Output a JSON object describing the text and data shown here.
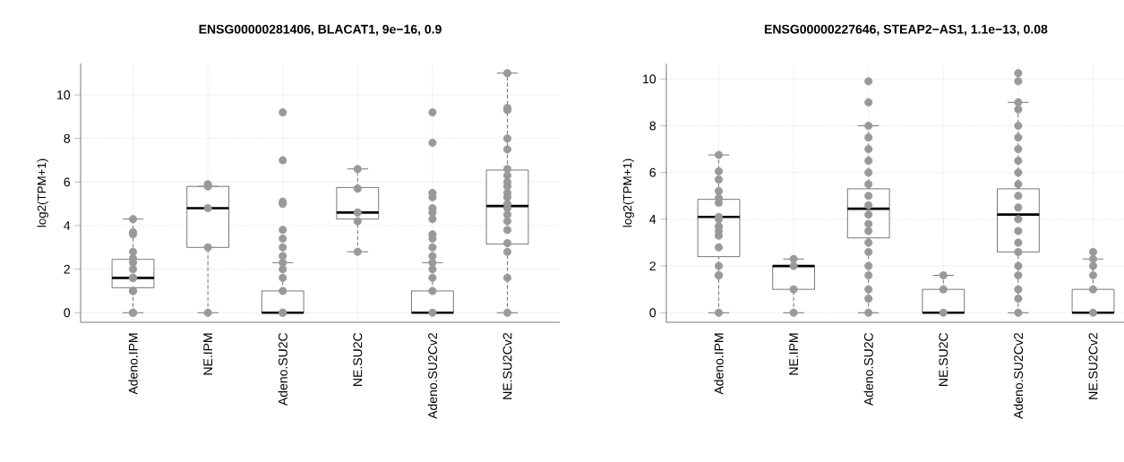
{
  "chart_data": [
    {
      "type": "box",
      "title": "ENSG00000281406, BLACAT1, 9e−16, 0.9",
      "ylabel": "log2(TPM+1)",
      "categories": [
        "Adeno.IPM",
        "NE.IPM",
        "Adeno.SU2C",
        "NE.SU2C",
        "Adeno.SU2Cv2",
        "NE.SU2Cv2"
      ],
      "boxes": [
        {
          "low": 0,
          "q1": 1.15,
          "median": 1.6,
          "q3": 2.45,
          "high": 4.3
        },
        {
          "low": 0,
          "q1": 3.0,
          "median": 4.8,
          "q3": 5.8,
          "high": 5.8
        },
        {
          "low": 0,
          "q1": 0,
          "median": 0,
          "q3": 1.0,
          "high": 2.3
        },
        {
          "low": 2.8,
          "q1": 4.3,
          "median": 4.6,
          "q3": 5.75,
          "high": 6.6
        },
        {
          "low": 0,
          "q1": 0,
          "median": 0,
          "q3": 1.0,
          "high": 2.3
        },
        {
          "low": 0,
          "q1": 3.15,
          "median": 4.9,
          "q3": 6.55,
          "high": 11.0
        }
      ],
      "series": [
        {
          "type": "scatter",
          "color": "#999999",
          "x": [
            "Adeno.IPM",
            "Adeno.IPM",
            "Adeno.IPM",
            "Adeno.IPM",
            "Adeno.IPM",
            "Adeno.IPM",
            "Adeno.IPM",
            "Adeno.IPM",
            "Adeno.IPM",
            "Adeno.IPM",
            "Adeno.IPM",
            "Adeno.IPM",
            "Adeno.IPM",
            "Adeno.IPM",
            "NE.IPM",
            "NE.IPM",
            "NE.IPM",
            "NE.IPM",
            "NE.IPM",
            "Adeno.SU2C",
            "Adeno.SU2C",
            "Adeno.SU2C",
            "Adeno.SU2C",
            "Adeno.SU2C",
            "Adeno.SU2C",
            "Adeno.SU2C",
            "Adeno.SU2C",
            "Adeno.SU2C",
            "Adeno.SU2C",
            "Adeno.SU2C",
            "Adeno.SU2C",
            "Adeno.SU2C",
            "Adeno.SU2C",
            "NE.SU2C",
            "NE.SU2C",
            "NE.SU2C",
            "NE.SU2C",
            "NE.SU2C",
            "Adeno.SU2Cv2",
            "Adeno.SU2Cv2",
            "Adeno.SU2Cv2",
            "Adeno.SU2Cv2",
            "Adeno.SU2Cv2",
            "Adeno.SU2Cv2",
            "Adeno.SU2Cv2",
            "Adeno.SU2Cv2",
            "Adeno.SU2Cv2",
            "Adeno.SU2Cv2",
            "Adeno.SU2Cv2",
            "Adeno.SU2Cv2",
            "Adeno.SU2Cv2",
            "Adeno.SU2Cv2",
            "Adeno.SU2Cv2",
            "Adeno.SU2Cv2",
            "NE.SU2Cv2",
            "NE.SU2Cv2",
            "NE.SU2Cv2",
            "NE.SU2Cv2",
            "NE.SU2Cv2",
            "NE.SU2Cv2",
            "NE.SU2Cv2",
            "NE.SU2Cv2",
            "NE.SU2Cv2",
            "NE.SU2Cv2",
            "NE.SU2Cv2",
            "NE.SU2Cv2",
            "NE.SU2Cv2",
            "NE.SU2Cv2",
            "NE.SU2Cv2",
            "NE.SU2Cv2",
            "NE.SU2Cv2",
            "NE.SU2Cv2",
            "NE.SU2Cv2",
            "NE.SU2Cv2"
          ],
          "values": [
            4.3,
            3.7,
            3.6,
            2.8,
            2.5,
            2.3,
            2.0,
            1.6,
            1.6,
            1.6,
            1.0,
            1.0,
            0,
            0,
            5.9,
            5.8,
            4.8,
            3.0,
            0,
            9.2,
            7.0,
            5.1,
            5.0,
            3.8,
            3.4,
            3.0,
            2.6,
            2.3,
            2.0,
            1.6,
            1.0,
            0,
            0,
            6.6,
            5.7,
            4.6,
            4.2,
            2.8,
            9.2,
            7.8,
            5.5,
            5.3,
            4.8,
            4.6,
            4.3,
            3.6,
            3.4,
            3.0,
            2.6,
            2.3,
            2.0,
            1.6,
            1.0,
            0,
            11.0,
            9.4,
            9.3,
            8.0,
            7.5,
            6.6,
            6.3,
            6.0,
            5.8,
            5.5,
            5.3,
            5.0,
            4.8,
            4.5,
            4.2,
            3.8,
            3.2,
            2.8,
            1.6,
            0
          ]
        }
      ],
      "marker": "circle",
      "ylim": [
        -0.44,
        11.44
      ],
      "yticks": [
        0,
        2,
        4,
        6,
        8,
        10
      ],
      "grid": true
    },
    {
      "type": "box",
      "title": "ENSG00000227646, STEAP2−AS1, 1.1e−13, 0.08",
      "ylabel": "log2(TPM+1)",
      "categories": [
        "Adeno.IPM",
        "NE.IPM",
        "Adeno.SU2C",
        "NE.SU2C",
        "Adeno.SU2Cv2",
        "NE.SU2Cv2"
      ],
      "boxes": [
        {
          "low": 0,
          "q1": 2.4,
          "median": 4.1,
          "q3": 4.85,
          "high": 6.75
        },
        {
          "low": 0,
          "q1": 1.0,
          "median": 2.0,
          "q3": 2.0,
          "high": 2.3
        },
        {
          "low": 0,
          "q1": 3.2,
          "median": 4.45,
          "q3": 5.3,
          "high": 8.0
        },
        {
          "low": 0,
          "q1": 0,
          "median": 0,
          "q3": 1.0,
          "high": 1.6
        },
        {
          "low": 0,
          "q1": 2.6,
          "median": 4.2,
          "q3": 5.3,
          "high": 9.0
        },
        {
          "low": 0,
          "q1": 0,
          "median": 0,
          "q3": 1.0,
          "high": 2.3
        }
      ],
      "series": [
        {
          "type": "scatter",
          "color": "#999999",
          "x": [
            "Adeno.IPM",
            "Adeno.IPM",
            "Adeno.IPM",
            "Adeno.IPM",
            "Adeno.IPM",
            "Adeno.IPM",
            "Adeno.IPM",
            "Adeno.IPM",
            "Adeno.IPM",
            "Adeno.IPM",
            "Adeno.IPM",
            "Adeno.IPM",
            "Adeno.IPM",
            "Adeno.IPM",
            "Adeno.IPM",
            "Adeno.IPM",
            "NE.IPM",
            "NE.IPM",
            "NE.IPM",
            "NE.IPM",
            "Adeno.SU2C",
            "Adeno.SU2C",
            "Adeno.SU2C",
            "Adeno.SU2C",
            "Adeno.SU2C",
            "Adeno.SU2C",
            "Adeno.SU2C",
            "Adeno.SU2C",
            "Adeno.SU2C",
            "Adeno.SU2C",
            "Adeno.SU2C",
            "Adeno.SU2C",
            "Adeno.SU2C",
            "Adeno.SU2C",
            "Adeno.SU2C",
            "Adeno.SU2C",
            "Adeno.SU2C",
            "Adeno.SU2C",
            "Adeno.SU2C",
            "Adeno.SU2C",
            "NE.SU2C",
            "NE.SU2C",
            "NE.SU2C",
            "Adeno.SU2Cv2",
            "Adeno.SU2Cv2",
            "Adeno.SU2Cv2",
            "Adeno.SU2Cv2",
            "Adeno.SU2Cv2",
            "Adeno.SU2Cv2",
            "Adeno.SU2Cv2",
            "Adeno.SU2Cv2",
            "Adeno.SU2Cv2",
            "Adeno.SU2Cv2",
            "Adeno.SU2Cv2",
            "Adeno.SU2Cv2",
            "Adeno.SU2Cv2",
            "Adeno.SU2Cv2",
            "Adeno.SU2Cv2",
            "Adeno.SU2Cv2",
            "Adeno.SU2Cv2",
            "Adeno.SU2Cv2",
            "Adeno.SU2Cv2",
            "Adeno.SU2Cv2",
            "Adeno.SU2Cv2",
            "NE.SU2Cv2",
            "NE.SU2Cv2",
            "NE.SU2Cv2",
            "NE.SU2Cv2",
            "NE.SU2Cv2",
            "NE.SU2Cv2"
          ],
          "values": [
            6.75,
            6.05,
            5.7,
            5.2,
            4.9,
            4.7,
            4.1,
            4.0,
            3.7,
            3.5,
            3.3,
            2.8,
            2.0,
            1.6,
            1.6,
            0,
            2.3,
            2.0,
            1.0,
            0,
            9.9,
            9.0,
            8.0,
            7.5,
            7.0,
            6.5,
            6.0,
            5.5,
            5.0,
            4.6,
            4.2,
            3.8,
            3.5,
            3.0,
            2.6,
            2.0,
            1.6,
            1.0,
            0.6,
            0,
            1.6,
            1.0,
            0,
            10.25,
            9.9,
            9.0,
            8.7,
            8.0,
            7.5,
            7.0,
            6.5,
            6.0,
            5.5,
            5.0,
            4.5,
            4.0,
            3.5,
            3.0,
            2.6,
            2.0,
            1.6,
            1.0,
            0.6,
            0,
            2.6,
            2.3,
            2.0,
            1.6,
            1.0,
            0
          ]
        }
      ],
      "marker": "circle",
      "ylim": [
        -0.41,
        10.66
      ],
      "yticks": [
        0,
        2,
        4,
        6,
        8,
        10
      ],
      "grid": true
    }
  ]
}
